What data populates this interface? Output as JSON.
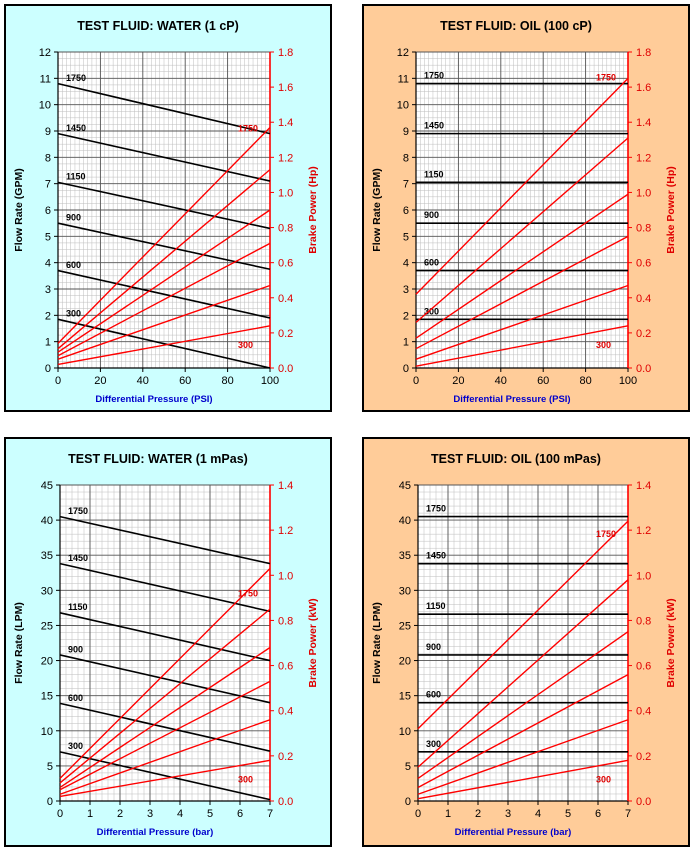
{
  "colors": {
    "water_bg": "#ccffff",
    "oil_bg": "#ffcc99",
    "flow_line": "#000000",
    "power_line": "#ff0000",
    "axis_label": "#0000cc",
    "grid": "#999999"
  },
  "chart_data": [
    {
      "type": "line",
      "title": "TEST FLUID:  WATER (1 cP)",
      "xlabel": "Differential Pressure (PSI)",
      "ylabel": "Flow Rate (GPM)",
      "ylabel_right": "Brake Power (Hp)",
      "xlim": [
        0,
        100
      ],
      "ylim": [
        0,
        12
      ],
      "ylim_right": [
        0,
        1.8
      ],
      "xticks": [
        0,
        20,
        40,
        60,
        80,
        100
      ],
      "yticks": [
        0,
        1,
        2,
        3,
        4,
        5,
        6,
        7,
        8,
        9,
        10,
        11,
        12
      ],
      "yticks_right": [
        "0.0",
        "0.2",
        "0.4",
        "0.6",
        "0.8",
        "1.0",
        "1.2",
        "1.4",
        "1.6",
        "1.8"
      ],
      "flow_series": [
        {
          "name": "1750",
          "x": [
            0,
            100
          ],
          "y": [
            10.8,
            8.9
          ]
        },
        {
          "name": "1450",
          "x": [
            0,
            100
          ],
          "y": [
            8.9,
            7.1
          ]
        },
        {
          "name": "1150",
          "x": [
            0,
            100
          ],
          "y": [
            7.05,
            5.3
          ]
        },
        {
          "name": "900",
          "x": [
            0,
            100
          ],
          "y": [
            5.5,
            3.75
          ]
        },
        {
          "name": "600",
          "x": [
            0,
            100
          ],
          "y": [
            3.7,
            1.9
          ]
        },
        {
          "name": "300",
          "x": [
            0,
            100
          ],
          "y": [
            1.85,
            0.0
          ]
        }
      ],
      "power_series": [
        {
          "name": "1750",
          "x": [
            0,
            100
          ],
          "y": [
            0.14,
            1.37
          ]
        },
        {
          "name": "",
          "x": [
            0,
            100
          ],
          "y": [
            0.11,
            1.13
          ]
        },
        {
          "name": "",
          "x": [
            0,
            100
          ],
          "y": [
            0.09,
            0.9
          ]
        },
        {
          "name": "",
          "x": [
            0,
            100
          ],
          "y": [
            0.07,
            0.71
          ]
        },
        {
          "name": "",
          "x": [
            0,
            100
          ],
          "y": [
            0.05,
            0.47
          ]
        },
        {
          "name": "300",
          "x": [
            0,
            100
          ],
          "y": [
            0.02,
            0.24
          ]
        }
      ]
    },
    {
      "type": "line",
      "title": "TEST FLUID:  OIL (100 cP)",
      "xlabel": "Differential Pressure (PSI)",
      "ylabel": "Flow Rate (GPM)",
      "ylabel_right": "Brake Power (Hp)",
      "xlim": [
        0,
        100
      ],
      "ylim": [
        0,
        12
      ],
      "ylim_right": [
        0,
        1.8
      ],
      "xticks": [
        0,
        20,
        40,
        60,
        80,
        100
      ],
      "yticks": [
        0,
        1,
        2,
        3,
        4,
        5,
        6,
        7,
        8,
        9,
        10,
        11,
        12
      ],
      "yticks_right": [
        "0.0",
        "0.2",
        "0.4",
        "0.6",
        "0.8",
        "1.0",
        "1.2",
        "1.4",
        "1.6",
        "1.8"
      ],
      "flow_series": [
        {
          "name": "1750",
          "x": [
            0,
            100
          ],
          "y": [
            10.8,
            10.8
          ]
        },
        {
          "name": "1450",
          "x": [
            0,
            100
          ],
          "y": [
            8.9,
            8.9
          ]
        },
        {
          "name": "1150",
          "x": [
            0,
            100
          ],
          "y": [
            7.05,
            7.05
          ]
        },
        {
          "name": "900",
          "x": [
            0,
            100
          ],
          "y": [
            5.5,
            5.5
          ]
        },
        {
          "name": "600",
          "x": [
            0,
            100
          ],
          "y": [
            3.7,
            3.7
          ]
        },
        {
          "name": "300",
          "x": [
            0,
            100
          ],
          "y": [
            1.85,
            1.85
          ]
        }
      ],
      "power_series": [
        {
          "name": "1750",
          "x": [
            0,
            100
          ],
          "y": [
            0.42,
            1.65
          ]
        },
        {
          "name": "",
          "x": [
            0,
            100
          ],
          "y": [
            0.26,
            1.31
          ]
        },
        {
          "name": "",
          "x": [
            0,
            100
          ],
          "y": [
            0.17,
            0.99
          ]
        },
        {
          "name": "",
          "x": [
            0,
            100
          ],
          "y": [
            0.11,
            0.75
          ]
        },
        {
          "name": "",
          "x": [
            0,
            100
          ],
          "y": [
            0.05,
            0.47
          ]
        },
        {
          "name": "300",
          "x": [
            0,
            100
          ],
          "y": [
            0.01,
            0.24
          ]
        }
      ]
    },
    {
      "type": "line",
      "title": "TEST FLUID:  WATER (1 mPas)",
      "xlabel": "Differential Pressure (bar)",
      "ylabel": "Flow Rate (LPM)",
      "ylabel_right": "Brake Power (kW)",
      "xlim": [
        0,
        7
      ],
      "ylim": [
        0,
        45
      ],
      "ylim_right": [
        0,
        1.4
      ],
      "xticks": [
        0,
        1,
        2,
        3,
        4,
        5,
        6,
        7
      ],
      "yticks": [
        0,
        5,
        10,
        15,
        20,
        25,
        30,
        35,
        40,
        45
      ],
      "yticks_right": [
        "0.0",
        "0.2",
        "0.4",
        "0.6",
        "0.8",
        "1.0",
        "1.2",
        "1.4"
      ],
      "flow_series": [
        {
          "name": "1750",
          "x": [
            0,
            7
          ],
          "y": [
            40.5,
            33.8
          ]
        },
        {
          "name": "1450",
          "x": [
            0,
            7
          ],
          "y": [
            33.8,
            27.0
          ]
        },
        {
          "name": "1150",
          "x": [
            0,
            7
          ],
          "y": [
            26.8,
            20.0
          ]
        },
        {
          "name": "900",
          "x": [
            0,
            7
          ],
          "y": [
            20.8,
            14.0
          ]
        },
        {
          "name": "600",
          "x": [
            0,
            7
          ],
          "y": [
            13.9,
            7.1
          ]
        },
        {
          "name": "300",
          "x": [
            0,
            7
          ],
          "y": [
            7.0,
            0.2
          ]
        }
      ],
      "power_series": [
        {
          "name": "1750",
          "x": [
            0,
            7
          ],
          "y": [
            0.1,
            1.03
          ]
        },
        {
          "name": "",
          "x": [
            0,
            7
          ],
          "y": [
            0.08,
            0.85
          ]
        },
        {
          "name": "",
          "x": [
            0,
            7
          ],
          "y": [
            0.06,
            0.68
          ]
        },
        {
          "name": "",
          "x": [
            0,
            7
          ],
          "y": [
            0.05,
            0.53
          ]
        },
        {
          "name": "",
          "x": [
            0,
            7
          ],
          "y": [
            0.03,
            0.36
          ]
        },
        {
          "name": "300",
          "x": [
            0,
            7
          ],
          "y": [
            0.02,
            0.18
          ]
        }
      ]
    },
    {
      "type": "line",
      "title": "TEST FLUID:  OIL (100 mPas)",
      "xlabel": "Differential Pressure (bar)",
      "ylabel": "Flow Rate (LPM)",
      "ylabel_right": "Brake Power (kW)",
      "xlim": [
        0,
        7
      ],
      "ylim": [
        0,
        45
      ],
      "ylim_right": [
        0,
        1.4
      ],
      "xticks": [
        0,
        1,
        2,
        3,
        4,
        5,
        6,
        7
      ],
      "yticks": [
        0,
        5,
        10,
        15,
        20,
        25,
        30,
        35,
        40,
        45
      ],
      "yticks_right": [
        "0.0",
        "0.2",
        "0.4",
        "0.6",
        "0.8",
        "1.0",
        "1.2",
        "1.4"
      ],
      "flow_series": [
        {
          "name": "1750",
          "x": [
            0,
            7
          ],
          "y": [
            40.5,
            40.5
          ]
        },
        {
          "name": "1450",
          "x": [
            0,
            7
          ],
          "y": [
            33.8,
            33.8
          ]
        },
        {
          "name": "1150",
          "x": [
            0,
            7
          ],
          "y": [
            26.6,
            26.6
          ]
        },
        {
          "name": "900",
          "x": [
            0,
            7
          ],
          "y": [
            20.8,
            20.8
          ]
        },
        {
          "name": "600",
          "x": [
            0,
            7
          ],
          "y": [
            14.0,
            14.0
          ]
        },
        {
          "name": "300",
          "x": [
            0,
            7
          ],
          "y": [
            7.0,
            7.0
          ]
        }
      ],
      "power_series": [
        {
          "name": "1750",
          "x": [
            0,
            7
          ],
          "y": [
            0.32,
            1.24
          ]
        },
        {
          "name": "",
          "x": [
            0,
            7
          ],
          "y": [
            0.15,
            0.98
          ]
        },
        {
          "name": "",
          "x": [
            0,
            7
          ],
          "y": [
            0.1,
            0.75
          ]
        },
        {
          "name": "",
          "x": [
            0,
            7
          ],
          "y": [
            0.06,
            0.56
          ]
        },
        {
          "name": "",
          "x": [
            0,
            7
          ],
          "y": [
            0.03,
            0.36
          ]
        },
        {
          "name": "300",
          "x": [
            0,
            7
          ],
          "y": [
            0.01,
            0.18
          ]
        }
      ]
    }
  ]
}
